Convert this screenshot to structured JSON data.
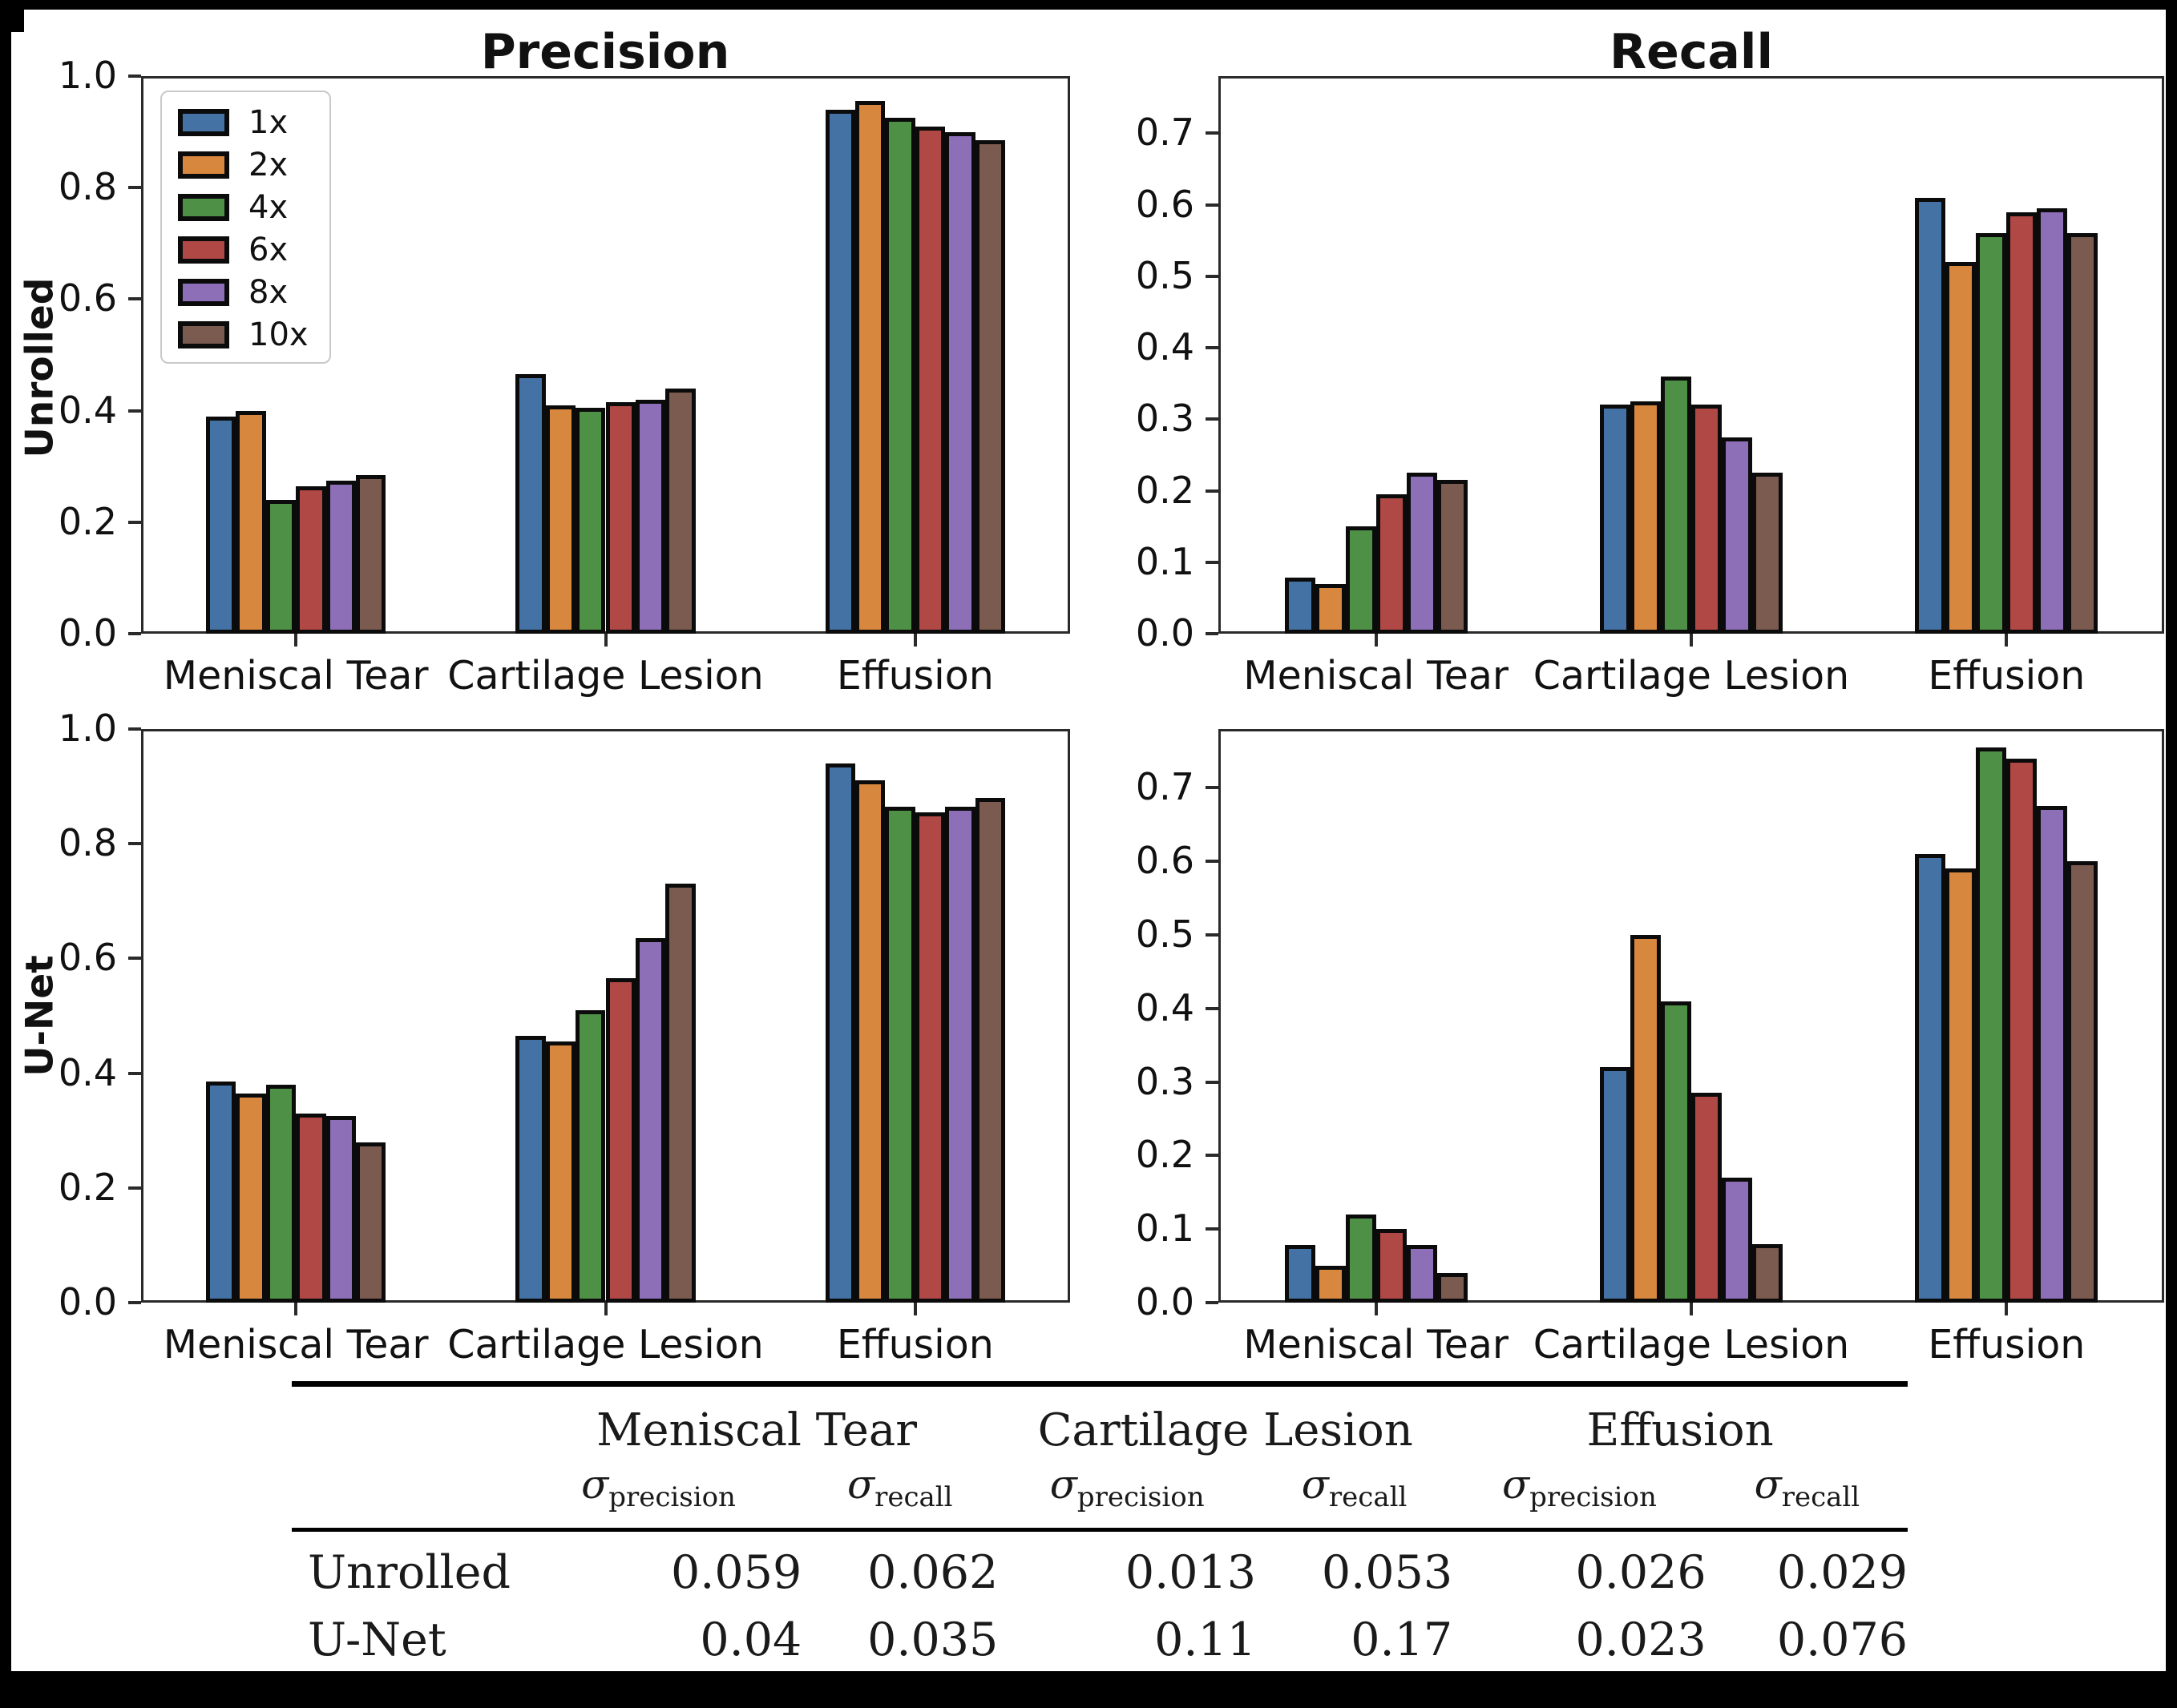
{
  "figure": {
    "col_titles": [
      "Precision",
      "Recall"
    ],
    "row_labels": [
      "Unrolled",
      "U-Net"
    ],
    "legend": {
      "labels": [
        "1x",
        "2x",
        "4x",
        "6x",
        "8x",
        "10x"
      ],
      "colors": [
        "#4472a4",
        "#d8873e",
        "#4f9047",
        "#b04846",
        "#8d6fb8",
        "#7b5a50"
      ]
    },
    "edge_color": "#0b0b0b",
    "background": "#ffffff",
    "frame_color": "#2a2a2a"
  },
  "chart_data": [
    {
      "type": "bar",
      "row": "Unrolled",
      "title": "Precision",
      "categories": [
        "Meniscal Tear",
        "Cartilage Lesion",
        "Effusion"
      ],
      "series": [
        {
          "name": "1x",
          "color": "#4472a4",
          "values": [
            0.39,
            0.465,
            0.94
          ]
        },
        {
          "name": "2x",
          "color": "#d8873e",
          "values": [
            0.4,
            0.41,
            0.955
          ]
        },
        {
          "name": "4x",
          "color": "#4f9047",
          "values": [
            0.24,
            0.405,
            0.925
          ]
        },
        {
          "name": "6x",
          "color": "#b04846",
          "values": [
            0.265,
            0.415,
            0.91
          ]
        },
        {
          "name": "8x",
          "color": "#8d6fb8",
          "values": [
            0.275,
            0.42,
            0.9
          ]
        },
        {
          "name": "10x",
          "color": "#7b5a50",
          "values": [
            0.285,
            0.44,
            0.885
          ]
        }
      ],
      "ylim": [
        0,
        1.0
      ],
      "yticks": [
        0,
        0.2,
        0.4,
        0.6,
        0.8,
        1.0
      ],
      "ytick_labels": [
        "0.0",
        "0.2",
        "0.4",
        "0.6",
        "0.8",
        "1.0"
      ],
      "legend": true,
      "grid": false
    },
    {
      "type": "bar",
      "row": "Unrolled",
      "title": "Recall",
      "categories": [
        "Meniscal Tear",
        "Cartilage Lesion",
        "Effusion"
      ],
      "series": [
        {
          "name": "1x",
          "color": "#4472a4",
          "values": [
            0.078,
            0.32,
            0.61
          ]
        },
        {
          "name": "2x",
          "color": "#d8873e",
          "values": [
            0.07,
            0.325,
            0.52
          ]
        },
        {
          "name": "4x",
          "color": "#4f9047",
          "values": [
            0.15,
            0.36,
            0.56
          ]
        },
        {
          "name": "6x",
          "color": "#b04846",
          "values": [
            0.195,
            0.32,
            0.59
          ]
        },
        {
          "name": "8x",
          "color": "#8d6fb8",
          "values": [
            0.225,
            0.275,
            0.595
          ]
        },
        {
          "name": "10x",
          "color": "#7b5a50",
          "values": [
            0.215,
            0.225,
            0.56
          ]
        }
      ],
      "ylim": [
        0,
        0.78
      ],
      "yticks": [
        0,
        0.1,
        0.2,
        0.3,
        0.4,
        0.5,
        0.6,
        0.7
      ],
      "ytick_labels": [
        "0.0",
        "0.1",
        "0.2",
        "0.3",
        "0.4",
        "0.5",
        "0.6",
        "0.7"
      ],
      "legend": false,
      "grid": false
    },
    {
      "type": "bar",
      "row": "U-Net",
      "title": "Precision",
      "categories": [
        "Meniscal Tear",
        "Cartilage Lesion",
        "Effusion"
      ],
      "series": [
        {
          "name": "1x",
          "color": "#4472a4",
          "values": [
            0.385,
            0.465,
            0.94
          ]
        },
        {
          "name": "2x",
          "color": "#d8873e",
          "values": [
            0.365,
            0.455,
            0.91
          ]
        },
        {
          "name": "4x",
          "color": "#4f9047",
          "values": [
            0.38,
            0.51,
            0.865
          ]
        },
        {
          "name": "6x",
          "color": "#b04846",
          "values": [
            0.33,
            0.565,
            0.855
          ]
        },
        {
          "name": "8x",
          "color": "#8d6fb8",
          "values": [
            0.325,
            0.635,
            0.865
          ]
        },
        {
          "name": "10x",
          "color": "#7b5a50",
          "values": [
            0.28,
            0.73,
            0.88
          ]
        }
      ],
      "ylim": [
        0,
        1.0
      ],
      "yticks": [
        0,
        0.2,
        0.4,
        0.6,
        0.8,
        1.0
      ],
      "ytick_labels": [
        "0.0",
        "0.2",
        "0.4",
        "0.6",
        "0.8",
        "1.0"
      ],
      "legend": false,
      "grid": false
    },
    {
      "type": "bar",
      "row": "U-Net",
      "title": "Recall",
      "categories": [
        "Meniscal Tear",
        "Cartilage Lesion",
        "Effusion"
      ],
      "series": [
        {
          "name": "1x",
          "color": "#4472a4",
          "values": [
            0.078,
            0.32,
            0.61
          ]
        },
        {
          "name": "2x",
          "color": "#d8873e",
          "values": [
            0.05,
            0.5,
            0.59
          ]
        },
        {
          "name": "4x",
          "color": "#4f9047",
          "values": [
            0.12,
            0.41,
            0.755
          ]
        },
        {
          "name": "6x",
          "color": "#b04846",
          "values": [
            0.1,
            0.285,
            0.74
          ]
        },
        {
          "name": "8x",
          "color": "#8d6fb8",
          "values": [
            0.078,
            0.17,
            0.675
          ]
        },
        {
          "name": "10x",
          "color": "#7b5a50",
          "values": [
            0.04,
            0.08,
            0.6
          ]
        }
      ],
      "ylim": [
        0,
        0.78
      ],
      "yticks": [
        0,
        0.1,
        0.2,
        0.3,
        0.4,
        0.5,
        0.6,
        0.7
      ],
      "ytick_labels": [
        "0.0",
        "0.1",
        "0.2",
        "0.3",
        "0.4",
        "0.5",
        "0.6",
        "0.7"
      ],
      "legend": false,
      "grid": false
    }
  ],
  "table": {
    "group_headers": [
      "Meniscal Tear",
      "Cartilage Lesion",
      "Effusion"
    ],
    "sub_headers": [
      {
        "sym": "σ",
        "sub": "precision"
      },
      {
        "sym": "σ",
        "sub": "recall"
      },
      {
        "sym": "σ",
        "sub": "precision"
      },
      {
        "sym": "σ",
        "sub": "recall"
      },
      {
        "sym": "σ",
        "sub": "precision"
      },
      {
        "sym": "σ",
        "sub": "recall"
      }
    ],
    "rows": [
      {
        "label": "Unrolled",
        "values": [
          "0.059",
          "0.062",
          "0.013",
          "0.053",
          "0.026",
          "0.029"
        ]
      },
      {
        "label": "U-Net",
        "values": [
          "0.04",
          "0.035",
          "0.11",
          "0.17",
          "0.023",
          "0.076"
        ]
      }
    ]
  }
}
